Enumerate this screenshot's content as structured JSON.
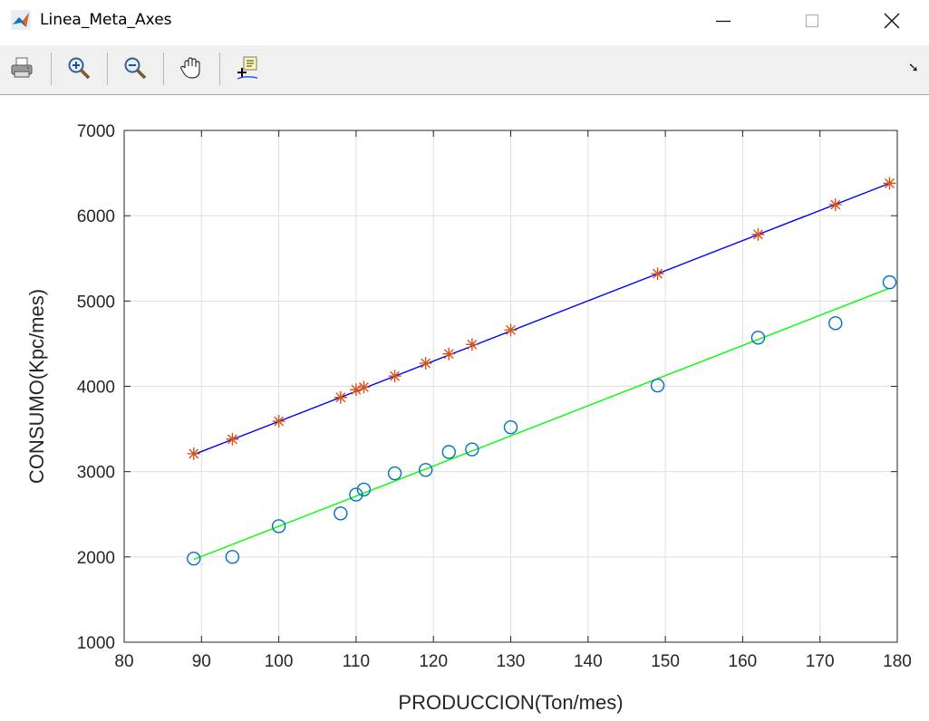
{
  "window": {
    "title": "Linea_Meta_Axes",
    "icon": "matlab-icon",
    "controls": [
      "minimize-icon",
      "maximize-icon",
      "close-icon"
    ]
  },
  "toolbar": {
    "items": [
      {
        "name": "print-button",
        "icon": "printer-icon"
      },
      {
        "name": "zoom-in-button",
        "icon": "zoom-in-icon"
      },
      {
        "name": "zoom-out-button",
        "icon": "zoom-out-icon"
      },
      {
        "name": "pan-button",
        "icon": "hand-icon"
      },
      {
        "name": "data-cursor-button",
        "icon": "data-cursor-icon"
      }
    ],
    "dock_icon": "dock-arrow-icon",
    "dock_glyph": "➘"
  },
  "chart_data": {
    "type": "scatter",
    "title": "",
    "xlabel": "PRODUCCION(Ton/mes)",
    "ylabel": "CONSUMO(Kpc/mes)",
    "xlim": [
      80,
      180
    ],
    "ylim": [
      1000,
      7000
    ],
    "xticks": [
      80,
      90,
      100,
      110,
      120,
      130,
      140,
      150,
      160,
      170,
      180
    ],
    "yticks": [
      1000,
      2000,
      3000,
      4000,
      5000,
      6000,
      7000
    ],
    "grid": true,
    "legend": "none",
    "series": [
      {
        "marker": "asterisk",
        "color": "#d95319",
        "x": [
          89,
          94,
          100,
          108,
          110,
          111,
          115,
          119,
          122,
          125,
          130,
          149,
          162,
          172,
          179
        ],
        "y": [
          3210,
          3380,
          3590,
          3870,
          3960,
          3990,
          4120,
          4270,
          4380,
          4490,
          4660,
          5320,
          5780,
          6130,
          6380
        ]
      },
      {
        "marker": "circle",
        "color": "#0072bd",
        "x": [
          89,
          94,
          100,
          108,
          110,
          111,
          115,
          119,
          122,
          125,
          130,
          149,
          162,
          172,
          179
        ],
        "y": [
          1980,
          2000,
          2360,
          2510,
          2730,
          2790,
          2980,
          3020,
          3230,
          3260,
          3520,
          4010,
          4570,
          4740,
          5220
        ]
      }
    ],
    "lines": [
      {
        "color": "#0000ff",
        "x": [
          89,
          179
        ],
        "y": [
          3200,
          6380
        ]
      },
      {
        "color": "#00ff00",
        "x": [
          89,
          179
        ],
        "y": [
          1970,
          5150
        ]
      }
    ]
  }
}
